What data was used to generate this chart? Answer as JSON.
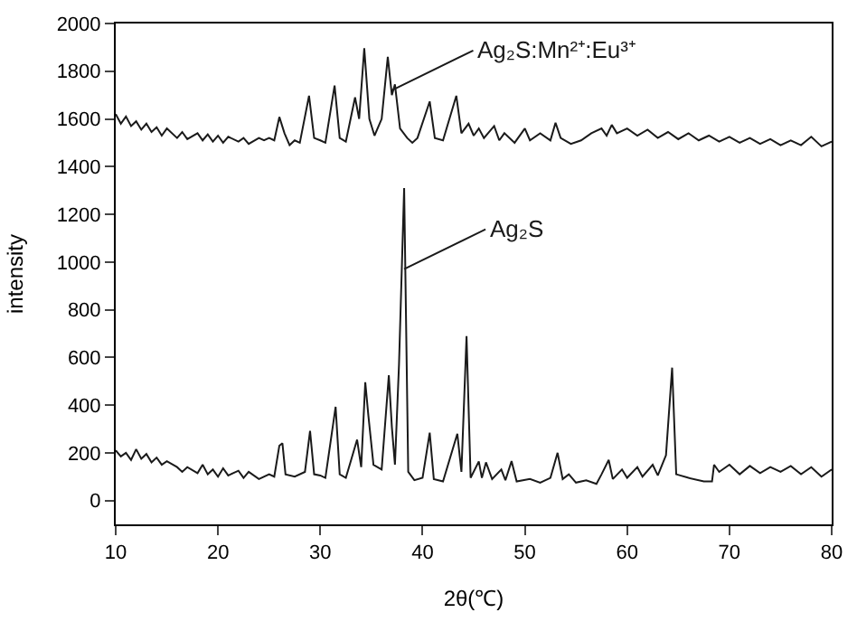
{
  "chart_data": {
    "type": "line",
    "xlabel": "2θ(℃)",
    "ylabel": "intensity",
    "xlim": [
      10,
      80
    ],
    "xticks": [
      10,
      20,
      30,
      40,
      50,
      60,
      70,
      80
    ],
    "ylim": [
      -100,
      2000
    ],
    "yticks": [
      0,
      200,
      400,
      600,
      800,
      1000,
      1200,
      1400,
      1600,
      1800,
      2000
    ],
    "marker": "none",
    "line_style": "solid",
    "series": [
      {
        "color": "#1a1a1a",
        "x": [
          10,
          10.5,
          11,
          11.5,
          12,
          12.5,
          13,
          13.5,
          14,
          14.5,
          15,
          16,
          16.5,
          17,
          18,
          18.5,
          19,
          19.5,
          20,
          20.5,
          21,
          22,
          22.5,
          23,
          24,
          24.5,
          25,
          25.5,
          26,
          26.5,
          27,
          27.5,
          28,
          28.9,
          29.4,
          30,
          30.5,
          31.4,
          31.9,
          32.5,
          33.4,
          33.8,
          34.3,
          34.8,
          35.3,
          36,
          36.6,
          37,
          37.3,
          37.8,
          38.5,
          39,
          39.5,
          40.7,
          41.2,
          42,
          43.3,
          43.8,
          44.5,
          45,
          45.5,
          46,
          47,
          47.5,
          48,
          49,
          50,
          50.5,
          51.5,
          52.5,
          53,
          53.5,
          54.5,
          55.5,
          56.5,
          57.5,
          58,
          58.5,
          59,
          60,
          61,
          62,
          63,
          64,
          65,
          66,
          67,
          68,
          69,
          70,
          71,
          72,
          73,
          74,
          75,
          76,
          77,
          78,
          79,
          80
        ],
        "values": [
          1620,
          1580,
          1610,
          1570,
          1590,
          1555,
          1580,
          1545,
          1565,
          1530,
          1560,
          1520,
          1545,
          1515,
          1540,
          1510,
          1535,
          1505,
          1530,
          1500,
          1525,
          1505,
          1520,
          1495,
          1520,
          1510,
          1520,
          1510,
          1608,
          1540,
          1490,
          1510,
          1500,
          1697,
          1520,
          1510,
          1500,
          1740,
          1520,
          1505,
          1690,
          1600,
          1896,
          1600,
          1530,
          1600,
          1860,
          1700,
          1745,
          1560,
          1520,
          1500,
          1520,
          1673,
          1520,
          1510,
          1697,
          1540,
          1580,
          1530,
          1560,
          1520,
          1570,
          1510,
          1540,
          1500,
          1560,
          1510,
          1540,
          1510,
          1584,
          1520,
          1495,
          1510,
          1540,
          1560,
          1530,
          1575,
          1540,
          1560,
          1530,
          1555,
          1520,
          1545,
          1515,
          1540,
          1510,
          1530,
          1505,
          1525,
          1500,
          1520,
          1495,
          1515,
          1490,
          1510,
          1490,
          1525,
          1485,
          1505
        ]
      },
      {
        "color": "#1a1a1a",
        "x": [
          10,
          10.5,
          11,
          11.5,
          12,
          12.5,
          13,
          13.5,
          14,
          14.5,
          15,
          16,
          16.5,
          17,
          18,
          18.5,
          19,
          19.5,
          20,
          20.5,
          21,
          22,
          22.5,
          23,
          24,
          25,
          25.5,
          26,
          26.3,
          26.6,
          27.5,
          28.5,
          29,
          29.4,
          30,
          30.5,
          31.5,
          31.9,
          32.5,
          33.6,
          34,
          34.4,
          34.7,
          35.2,
          36,
          36.7,
          37,
          37.3,
          37.7,
          38.2,
          38.6,
          39.2,
          40,
          40.7,
          41.1,
          42,
          43.4,
          43.8,
          44.3,
          44.7,
          45.5,
          45.8,
          46.2,
          46.8,
          47.7,
          48.1,
          48.7,
          49.2,
          50.5,
          51.5,
          52.5,
          53.2,
          53.7,
          54.3,
          55,
          56,
          57,
          57.5,
          58.2,
          58.6,
          59.5,
          60,
          61,
          61.5,
          62.5,
          63,
          63.8,
          64.4,
          64.8,
          66,
          67.5,
          68.3,
          68.5,
          69,
          70,
          71,
          72,
          73,
          74,
          75,
          76,
          77,
          78,
          79,
          80
        ],
        "values": [
          210,
          185,
          200,
          170,
          215,
          175,
          195,
          160,
          180,
          150,
          165,
          140,
          120,
          140,
          115,
          150,
          110,
          130,
          100,
          135,
          105,
          125,
          95,
          120,
          90,
          110,
          100,
          230,
          240,
          110,
          100,
          120,
          292,
          110,
          105,
          95,
          393,
          110,
          95,
          255,
          140,
          496,
          357,
          150,
          130,
          525,
          308,
          150,
          573,
          1310,
          120,
          85,
          95,
          284,
          90,
          80,
          280,
          120,
          689,
          95,
          164,
          95,
          160,
          90,
          130,
          85,
          165,
          80,
          90,
          75,
          95,
          200,
          90,
          110,
          75,
          85,
          70,
          110,
          170,
          90,
          130,
          95,
          140,
          100,
          150,
          105,
          190,
          557,
          110,
          95,
          80,
          80,
          150,
          120,
          150,
          110,
          145,
          115,
          140,
          120,
          145,
          110,
          140,
          100,
          130
        ]
      }
    ],
    "annotations": [
      {
        "text": "Ag₂S:Mn²⁺:Eu³⁺",
        "x": 37,
        "y": 1720
      },
      {
        "text": "Ag₂S",
        "x": 38.2,
        "y": 970
      }
    ]
  }
}
